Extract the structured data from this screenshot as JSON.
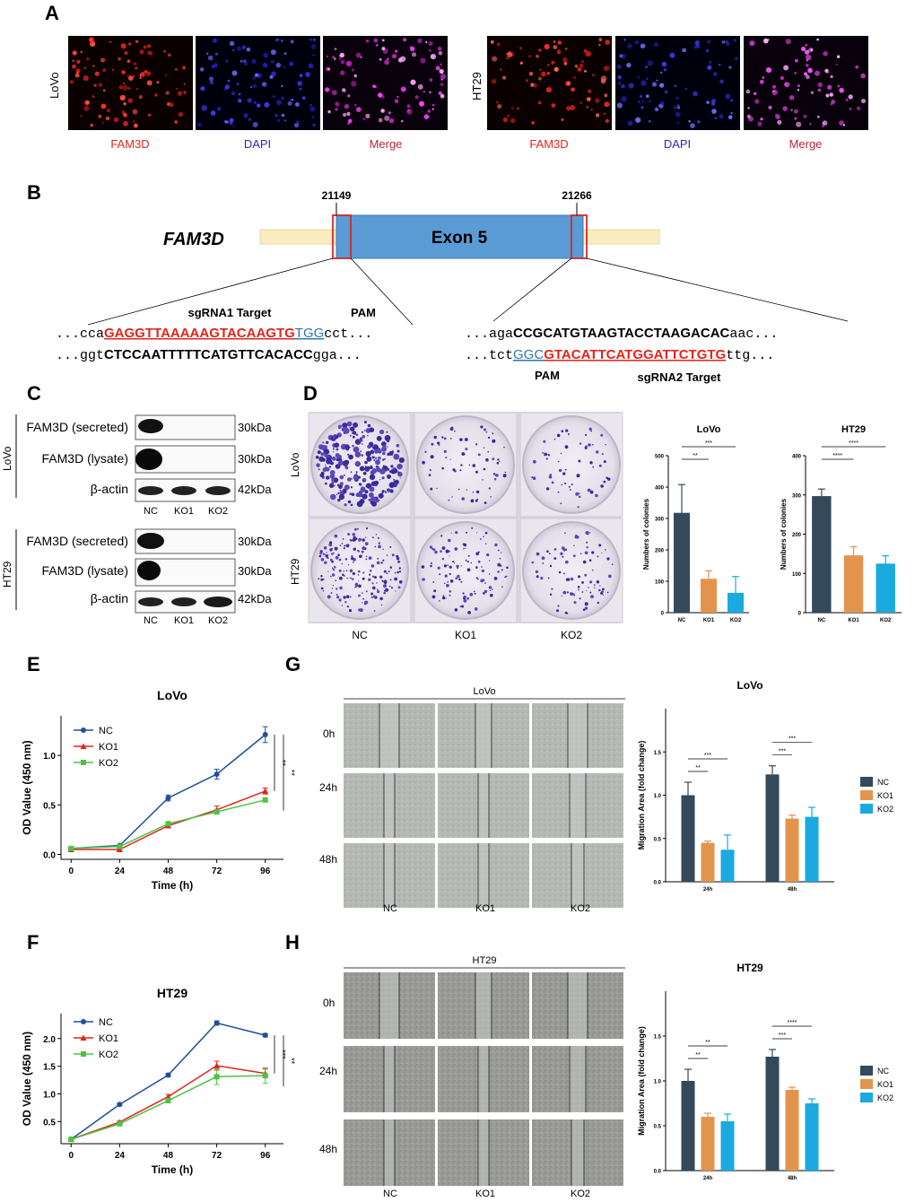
{
  "panel_letters": [
    "A",
    "B",
    "C",
    "D",
    "E",
    "F",
    "G",
    "H"
  ],
  "panelA": {
    "groups": [
      {
        "cell_line": "LoVo",
        "labels": [
          "FAM3D",
          "DAPI",
          "Merge"
        ]
      },
      {
        "cell_line": "HT29",
        "labels": [
          "FAM3D",
          "DAPI",
          "Merge"
        ]
      }
    ],
    "label_colors": {
      "FAM3D": "#e0251b",
      "DAPI": "#2a2aa8",
      "Merge": "#c0243a"
    }
  },
  "panelB": {
    "gene": "FAM3D",
    "exon_label": "Exon 5",
    "pos_left": "21149",
    "pos_right": "21266",
    "sgRNA1_label": "sgRNA1 Target",
    "pam1_label": "PAM",
    "pam2_label": "PAM",
    "sgRNA2_label": "sgRNA2 Target",
    "seq1_top": {
      "pre": "...cca",
      "target": "GAGGTTAAAAAGTACAAGTG",
      "pam": "TGG",
      "post": "cct..."
    },
    "seq1_bottom": {
      "pre": "...ggt",
      "core": "CTCCAATTTTTCATGTTCACACC",
      "post": "gga..."
    },
    "seq2_top": {
      "pre": "...aga",
      "core": "CCGCATGTAAGTACCTAAGACAC",
      "post": "aac..."
    },
    "seq2_bottom": {
      "pre": "...tct",
      "pam": "GGC",
      "target": "GTACATTCATGGATTCTGTG",
      "post": "ttg..."
    }
  },
  "panelC": {
    "blots": [
      {
        "cell_line": "LoVo",
        "rows": [
          {
            "label": "FAM3D (secreted)",
            "kda": "30kDa"
          },
          {
            "label": "FAM3D (lysate)",
            "kda": "30kDa"
          },
          {
            "label": "β-actin",
            "kda": "42kDa"
          }
        ],
        "lanes": [
          "NC",
          "KO1",
          "KO2"
        ]
      },
      {
        "cell_line": "HT29",
        "rows": [
          {
            "label": "FAM3D (secreted)",
            "kda": "30kDa"
          },
          {
            "label": "FAM3D (lysate)",
            "kda": "30kDa"
          },
          {
            "label": "β-actin",
            "kda": "42kDa"
          }
        ],
        "lanes": [
          "NC",
          "KO1",
          "KO2"
        ]
      }
    ]
  },
  "panelD": {
    "row_labels": [
      "LoVo",
      "HT29"
    ],
    "col_labels": [
      "NC",
      "KO1",
      "KO2"
    ]
  },
  "panelG_images": {
    "header": "LoVo",
    "rows": [
      "0h",
      "24h",
      "48h"
    ],
    "cols": [
      "NC",
      "KO1",
      "KO2"
    ]
  },
  "panelH_images": {
    "header": "HT29",
    "rows": [
      "0h",
      "24h",
      "48h"
    ],
    "cols": [
      "NC",
      "KO1",
      "KO2"
    ]
  },
  "colors": {
    "NC": "#34495a",
    "KO1": "#e3944c",
    "KO2": "#1aaadf",
    "lineNC": "#1f4e9c",
    "lineKO1": "#e0251b",
    "lineKO2": "#4fc243"
  },
  "chart_data": [
    {
      "id": "D-LoVo",
      "type": "bar",
      "title": "LoVo",
      "ylabel": "Numbers of colonies",
      "categories": [
        "NC",
        "KO1",
        "KO2"
      ],
      "values": [
        318,
        108,
        63
      ],
      "errors": [
        90,
        25,
        52
      ],
      "ylim": [
        0,
        500
      ],
      "yticks": [
        0,
        100,
        200,
        300,
        400,
        500
      ],
      "sig": [
        {
          "from": 0,
          "to": 1,
          "label": "**"
        },
        {
          "from": 0,
          "to": 2,
          "label": "***"
        }
      ]
    },
    {
      "id": "D-HT29",
      "type": "bar",
      "title": "HT29",
      "ylabel": "Numbers of colonies",
      "categories": [
        "NC",
        "KO1",
        "KO2"
      ],
      "values": [
        297,
        146,
        125
      ],
      "errors": [
        18,
        22,
        20
      ],
      "ylim": [
        0,
        400
      ],
      "yticks": [
        0,
        100,
        200,
        300,
        400
      ],
      "sig": [
        {
          "from": 0,
          "to": 1,
          "label": "****"
        },
        {
          "from": 0,
          "to": 2,
          "label": "****"
        }
      ]
    },
    {
      "id": "E",
      "type": "line",
      "title": "LoVo",
      "xlabel": "Time (h)",
      "ylabel": "OD Value (450 nm)",
      "x": [
        0,
        24,
        48,
        72,
        96
      ],
      "xlim": [
        -5,
        105
      ],
      "ylim": [
        -0.05,
        1.4
      ],
      "yticks": [
        0.0,
        0.5,
        1.0
      ],
      "series": [
        {
          "name": "NC",
          "values": [
            0.06,
            0.09,
            0.57,
            0.81,
            1.21
          ],
          "errors": [
            0.01,
            0.01,
            0.03,
            0.05,
            0.08
          ]
        },
        {
          "name": "KO1",
          "values": [
            0.05,
            0.05,
            0.29,
            0.45,
            0.64
          ],
          "errors": [
            0.01,
            0.01,
            0.02,
            0.04,
            0.03
          ]
        },
        {
          "name": "KO2",
          "values": [
            0.06,
            0.08,
            0.31,
            0.43,
            0.55
          ],
          "errors": [
            0.01,
            0.01,
            0.02,
            0.02,
            0.02
          ]
        }
      ],
      "sig": [
        "**",
        "**"
      ]
    },
    {
      "id": "F",
      "type": "line",
      "title": "HT29",
      "xlabel": "Time (h)",
      "ylabel": "OD Value (450 nm)",
      "x": [
        0,
        24,
        48,
        72,
        96
      ],
      "xlim": [
        -5,
        105
      ],
      "ylim": [
        0.1,
        2.45
      ],
      "yticks": [
        0.5,
        1.0,
        1.5,
        2.0
      ],
      "series": [
        {
          "name": "NC",
          "values": [
            0.18,
            0.81,
            1.34,
            2.28,
            2.06
          ],
          "errors": [
            0.01,
            0.02,
            0.03,
            0.04,
            0.03
          ]
        },
        {
          "name": "KO1",
          "values": [
            0.18,
            0.49,
            0.95,
            1.51,
            1.37
          ],
          "errors": [
            0.01,
            0.02,
            0.04,
            0.08,
            0.08
          ]
        },
        {
          "name": "KO2",
          "values": [
            0.18,
            0.46,
            0.88,
            1.31,
            1.33
          ],
          "errors": [
            0.01,
            0.02,
            0.04,
            0.14,
            0.14
          ]
        }
      ],
      "sig": [
        "***",
        "**"
      ]
    },
    {
      "id": "G-chart",
      "type": "bar",
      "title": "LoVo",
      "ylabel": "Migration Area (fold change)",
      "categories": [
        "24h",
        "48h"
      ],
      "ylim": [
        0,
        2.0
      ],
      "yticks": [
        0.0,
        0.5,
        1.0,
        1.5
      ],
      "series": [
        {
          "name": "NC",
          "values": [
            1.0,
            1.24
          ],
          "errors": [
            0.15,
            0.1
          ]
        },
        {
          "name": "KO1",
          "values": [
            0.45,
            0.73
          ],
          "errors": [
            0.02,
            0.04
          ]
        },
        {
          "name": "KO2",
          "values": [
            0.37,
            0.75
          ],
          "errors": [
            0.17,
            0.11
          ]
        }
      ],
      "sig": [
        {
          "group": 0,
          "from": 0,
          "to": 1,
          "label": "**"
        },
        {
          "group": 0,
          "from": 0,
          "to": 2,
          "label": "***"
        },
        {
          "group": 1,
          "from": 0,
          "to": 1,
          "label": "***"
        },
        {
          "group": 1,
          "from": 0,
          "to": 2,
          "label": "***"
        }
      ]
    },
    {
      "id": "H-chart",
      "type": "bar",
      "title": "HT29",
      "ylabel": "Migration Area (fold change)",
      "categories": [
        "24h",
        "48h"
      ],
      "ylim": [
        0,
        2.0
      ],
      "yticks": [
        0.0,
        0.5,
        1.0,
        1.5
      ],
      "series": [
        {
          "name": "NC",
          "values": [
            1.0,
            1.27
          ],
          "errors": [
            0.13,
            0.08
          ]
        },
        {
          "name": "KO1",
          "values": [
            0.6,
            0.9
          ],
          "errors": [
            0.04,
            0.03
          ]
        },
        {
          "name": "KO2",
          "values": [
            0.55,
            0.75
          ],
          "errors": [
            0.08,
            0.05
          ]
        }
      ],
      "sig": [
        {
          "group": 0,
          "from": 0,
          "to": 1,
          "label": "**"
        },
        {
          "group": 0,
          "from": 0,
          "to": 2,
          "label": "**"
        },
        {
          "group": 1,
          "from": 0,
          "to": 1,
          "label": "***"
        },
        {
          "group": 1,
          "from": 0,
          "to": 2,
          "label": "****"
        }
      ]
    }
  ]
}
